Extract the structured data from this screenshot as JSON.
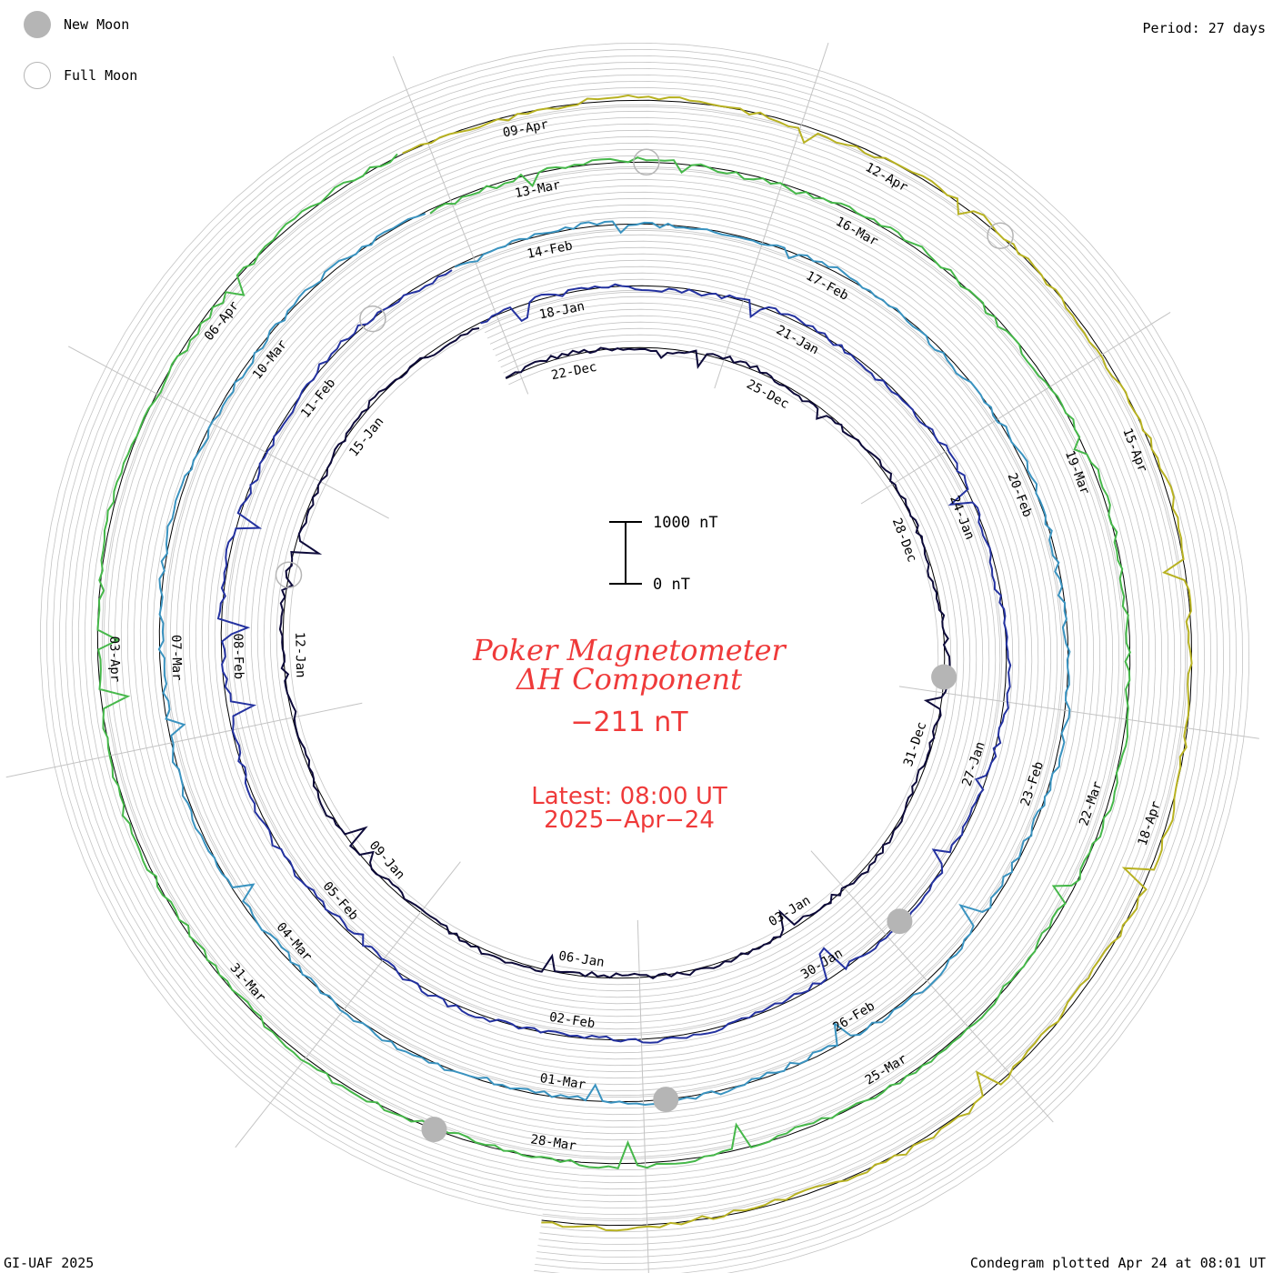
{
  "legend": {
    "new_moon": "New Moon",
    "full_moon": "Full Moon",
    "moon_color": "#b5b5b5"
  },
  "period_label": "Period: 27 days",
  "credit": "GI-UAF 2025",
  "plotted_label": "Condegram plotted Apr 24 at 08:01 UT",
  "title_line1": "Poker Magnetometer",
  "title_line2": "ΔH Component",
  "current_value": "−211 nT",
  "latest_line1": "Latest: 08:00 UT",
  "latest_line2": "2025−Apr−24",
  "accent_color": "#ef3a3a",
  "chart_data": {
    "type": "line",
    "subtype": "condegram spiral",
    "period_days": 27,
    "scale_bar": {
      "low_label": "0 nT",
      "high_label": "1000 nT",
      "low": 0,
      "high": 1000
    },
    "rotations": [
      {
        "color": "#0d0a3a",
        "start": "2024-12-21",
        "end": "2025-01-17"
      },
      {
        "color": "#2432a0",
        "start": "2025-01-17",
        "end": "2025-02-13"
      },
      {
        "color": "#3a93c0",
        "start": "2025-02-13",
        "end": "2025-03-12"
      },
      {
        "color": "#46b84a",
        "start": "2025-03-12",
        "end": "2025-04-08"
      },
      {
        "color": "#b8b222",
        "start": "2025-04-08",
        "end": "2025-04-24"
      }
    ],
    "date_labels": [
      {
        "text": "22-Dec"
      },
      {
        "text": "25-Dec"
      },
      {
        "text": "28-Dec"
      },
      {
        "text": "31-Dec"
      },
      {
        "text": "03-Jan"
      },
      {
        "text": "06-Jan"
      },
      {
        "text": "09-Jan"
      },
      {
        "text": "12-Jan"
      },
      {
        "text": "15-Jan"
      },
      {
        "text": "18-Jan"
      },
      {
        "text": "21-Jan"
      },
      {
        "text": "24-Jan"
      },
      {
        "text": "27-Jan"
      },
      {
        "text": "30-Jan"
      },
      {
        "text": "02-Feb"
      },
      {
        "text": "05-Feb"
      },
      {
        "text": "08-Feb"
      },
      {
        "text": "11-Feb"
      },
      {
        "text": "14-Feb"
      },
      {
        "text": "17-Feb"
      },
      {
        "text": "20-Feb"
      },
      {
        "text": "23-Feb"
      },
      {
        "text": "26-Feb"
      },
      {
        "text": "01-Mar"
      },
      {
        "text": "04-Mar"
      },
      {
        "text": "07-Mar"
      },
      {
        "text": "10-Mar"
      },
      {
        "text": "13-Mar"
      },
      {
        "text": "16-Mar"
      },
      {
        "text": "19-Mar"
      },
      {
        "text": "22-Mar"
      },
      {
        "text": "25-Mar"
      },
      {
        "text": "28-Mar"
      },
      {
        "text": "31-Mar"
      },
      {
        "text": "03-Apr"
      },
      {
        "text": "06-Apr"
      },
      {
        "text": "09-Apr"
      },
      {
        "text": "12-Apr"
      },
      {
        "text": "15-Apr"
      },
      {
        "text": "18-Apr"
      }
    ],
    "new_moons": [
      "2024-12-30",
      "2025-01-29",
      "2025-02-28",
      "2025-03-29"
    ],
    "full_moons": [
      "2025-01-13",
      "2025-02-12",
      "2025-03-14",
      "2025-04-13"
    ]
  }
}
